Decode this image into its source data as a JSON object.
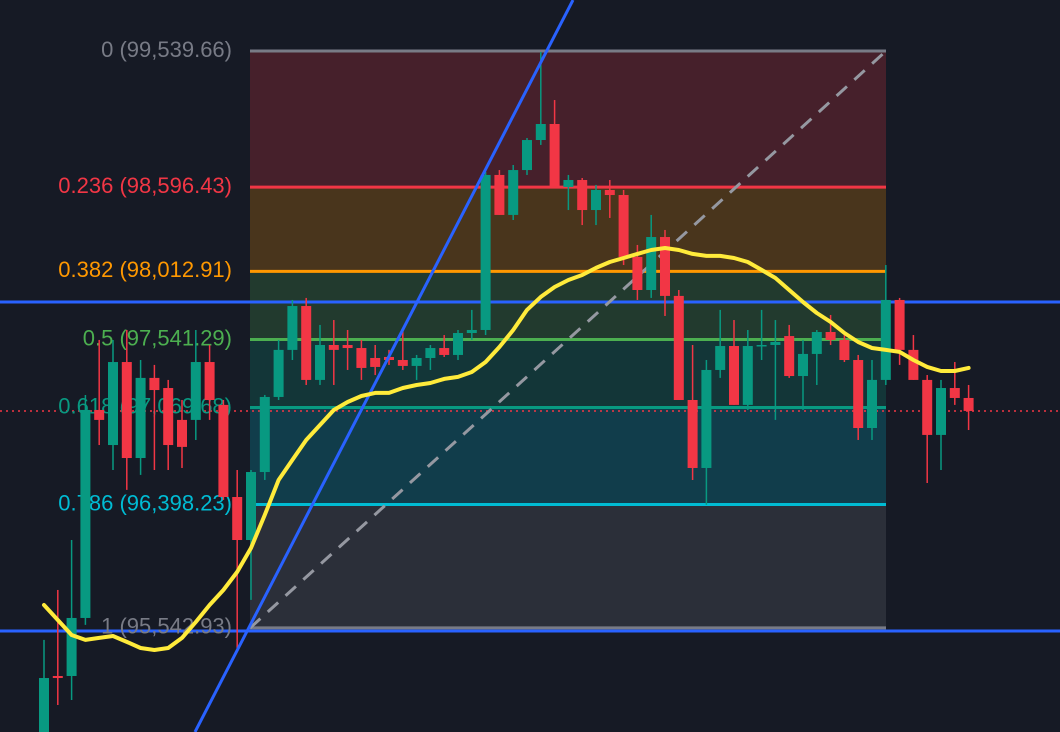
{
  "chart_data": {
    "type": "candlestick",
    "ylim": [
      94822,
      99893
    ],
    "up_color": "#089981",
    "down_color": "#f23645",
    "open": [
      94822,
      95210,
      95210,
      95612,
      97053,
      96810,
      97385,
      96720,
      97275,
      97205,
      96984,
      96984,
      97385,
      97088,
      96450,
      96152,
      96623,
      97143,
      97469,
      97773,
      97261,
      97503,
      97503,
      97482,
      97413,
      97420,
      97399,
      97358,
      97413,
      97482,
      97434,
      97586,
      97607,
      98681,
      98404,
      98715,
      98923,
      99034,
      98598,
      98646,
      98438,
      98577,
      98542,
      98113,
      97884,
      98251,
      97843,
      97122,
      96651,
      97330,
      97496,
      97088,
      97496,
      97503,
      97565,
      97288,
      97441,
      97593,
      97538,
      97399,
      96928,
      97261,
      97815,
      97469,
      97261,
      96880,
      97205,
      97136
    ],
    "high": [
      95460,
      95806,
      96152,
      97157,
      97538,
      97538,
      97607,
      97399,
      97365,
      97261,
      97122,
      97607,
      97503,
      97122,
      96637,
      96637,
      97157,
      97538,
      97815,
      97829,
      97642,
      97676,
      97607,
      97538,
      97503,
      97469,
      97607,
      97434,
      97503,
      97572,
      97607,
      97746,
      98702,
      98715,
      98750,
      98937,
      99533,
      99200,
      98681,
      98660,
      98612,
      98646,
      98577,
      98196,
      98404,
      98300,
      97884,
      97503,
      97399,
      97746,
      97676,
      97607,
      97746,
      97676,
      97642,
      97538,
      97607,
      97711,
      97572,
      97434,
      97399,
      98057,
      97829,
      97572,
      97295,
      97261,
      97385,
      97226
    ],
    "low": [
      94822,
      95009,
      95044,
      95564,
      96810,
      96637,
      96499,
      96603,
      96637,
      96637,
      96651,
      96845,
      96984,
      96430,
      95390,
      95737,
      96568,
      97122,
      97399,
      97226,
      97226,
      97226,
      97330,
      97261,
      97295,
      97365,
      97330,
      97261,
      97330,
      97420,
      97399,
      97538,
      97572,
      98404,
      98369,
      98681,
      98889,
      98598,
      98438,
      98334,
      98334,
      98383,
      98057,
      97815,
      97829,
      97704,
      97122,
      96568,
      96395,
      97275,
      97088,
      97053,
      97399,
      96984,
      97275,
      97053,
      97226,
      97503,
      97385,
      96845,
      96845,
      97226,
      97365,
      97261,
      96547,
      96637,
      97088,
      96914
    ],
    "close": [
      95196,
      95196,
      95612,
      97053,
      96984,
      97385,
      96720,
      97275,
      97191,
      96810,
      96797,
      97385,
      97122,
      96450,
      96152,
      96623,
      97143,
      97469,
      97773,
      97261,
      97503,
      97469,
      97482,
      97344,
      97351,
      97399,
      97358,
      97413,
      97482,
      97434,
      97586,
      97607,
      98681,
      98404,
      98715,
      98923,
      99034,
      98598,
      98646,
      98438,
      98577,
      98542,
      98113,
      97884,
      98251,
      97843,
      97122,
      96651,
      97330,
      97496,
      97088,
      97496,
      97503,
      97524,
      97288,
      97441,
      97593,
      97538,
      97399,
      96928,
      97261,
      97815,
      97469,
      97261,
      96880,
      97205,
      97136,
      97046
    ],
    "moving_average": {
      "color": "#ffeb3b",
      "values": [
        95702,
        95598,
        95494,
        95460,
        95474,
        95487,
        95446,
        95404,
        95390,
        95404,
        95474,
        95584,
        95702,
        95806,
        95931,
        96097,
        96326,
        96568,
        96707,
        96845,
        96949,
        97053,
        97108,
        97150,
        97171,
        97171,
        97205,
        97226,
        97240,
        97268,
        97282,
        97316,
        97385,
        97489,
        97607,
        97746,
        97836,
        97905,
        97953,
        97988,
        98037,
        98078,
        98106,
        98134,
        98161,
        98175,
        98161,
        98134,
        98120,
        98120,
        98106,
        98078,
        98023,
        97967,
        97884,
        97801,
        97725,
        97663,
        97586,
        97524,
        97482,
        97469,
        97455,
        97399,
        97351,
        97323,
        97323,
        97344
      ]
    },
    "fib_levels": [
      {
        "label": "0 (99,539.66)",
        "value": 99539.66,
        "color": "#787b86"
      },
      {
        "label": "0.236 (98,596.43)",
        "value": 98596.43,
        "color": "#f23645"
      },
      {
        "label": "0.382 (98,012.91)",
        "value": 98012.91,
        "color": "#ff9800"
      },
      {
        "label": "0.5 (97,541.29)",
        "value": 97541.29,
        "color": "#4caf50"
      },
      {
        "label": "0.618 (97,069.68)",
        "value": 97069.68,
        "color": "#089981"
      },
      {
        "label": "0.786 (96,398.23)",
        "value": 96398.23,
        "color": "#00bcd4"
      },
      {
        "label": "1 (95,542.93)",
        "value": 95542.93,
        "color": "#787b86"
      }
    ],
    "horizontal_lines": {
      "color": "#2962ff",
      "values": [
        97801,
        95522
      ]
    },
    "last_price": {
      "color": "#f23645",
      "value": 97046
    }
  }
}
